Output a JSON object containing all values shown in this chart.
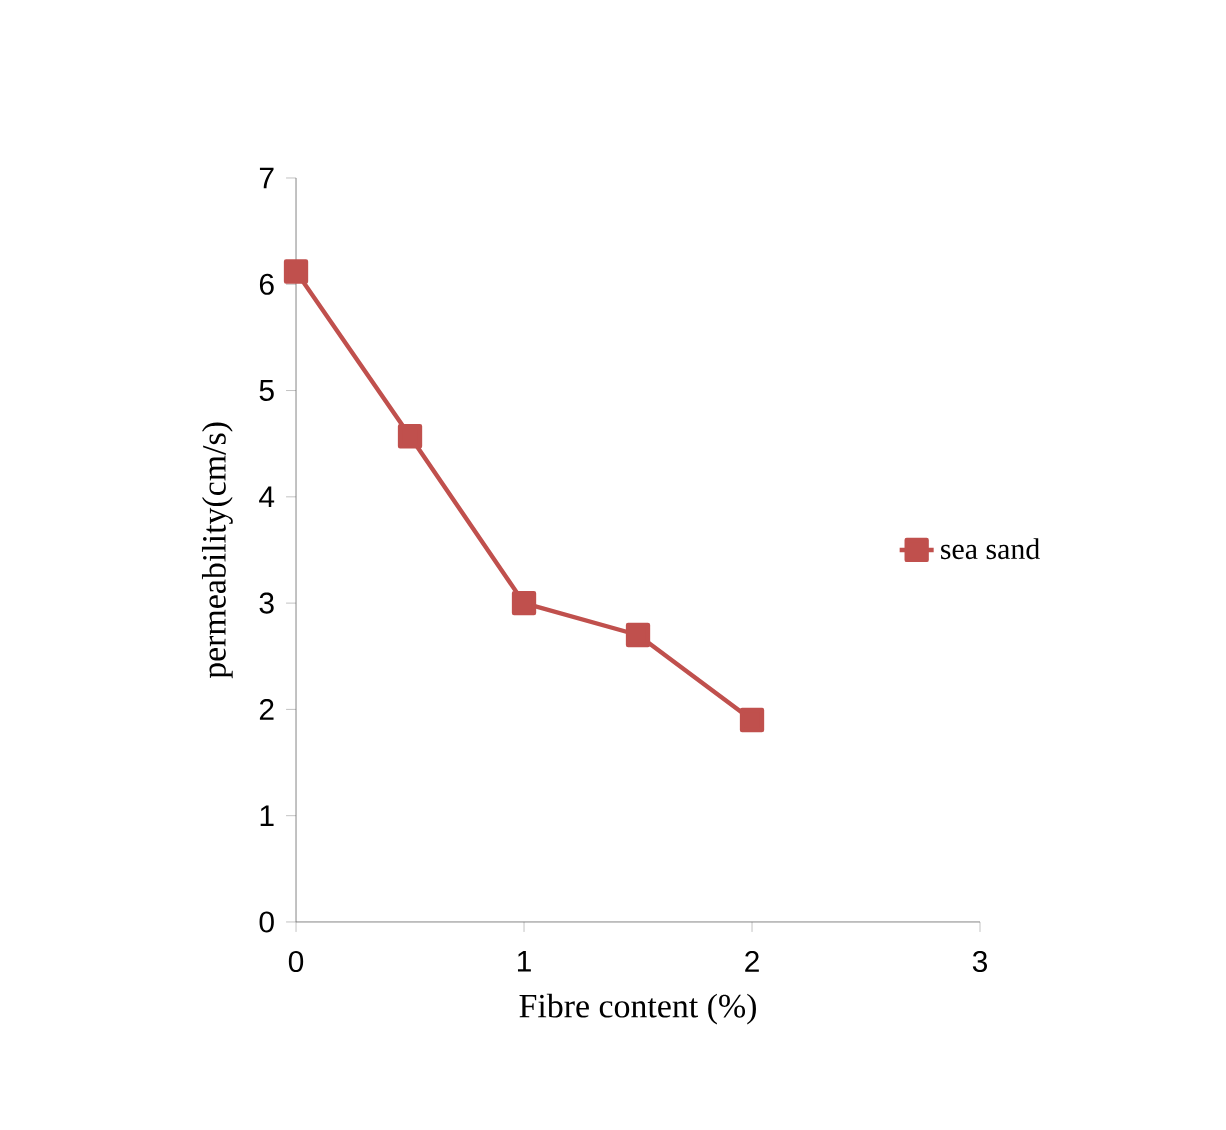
{
  "chart_data": {
    "type": "line",
    "xlabel": "Fibre content (%)",
    "ylabel": "permeability(cm/s)",
    "x": [
      0,
      0.5,
      1,
      1.5,
      2
    ],
    "series": [
      {
        "name": "sea sand",
        "color": "#c0504d",
        "values": [
          6.12,
          4.57,
          3.0,
          2.7,
          1.9
        ]
      }
    ],
    "xlim": [
      0,
      3
    ],
    "ylim": [
      0,
      7
    ],
    "xticks": [
      0,
      1,
      2,
      3
    ],
    "yticks": [
      0,
      1,
      2,
      3,
      4,
      5,
      6,
      7
    ],
    "legend": "right",
    "marker": "square",
    "line_style": "solid"
  }
}
